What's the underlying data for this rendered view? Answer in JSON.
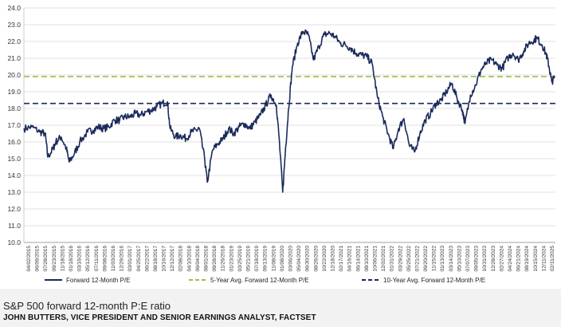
{
  "chart_data": {
    "type": "line",
    "title": "",
    "xlabel": "",
    "ylabel": "",
    "ylim": [
      10,
      24
    ],
    "y_ticks": [
      "10.0",
      "11.0",
      "12.0",
      "13.0",
      "14.0",
      "15.0",
      "16.0",
      "17.0",
      "18.0",
      "19.0",
      "20.0",
      "21.0",
      "22.0",
      "23.0",
      "24.0"
    ],
    "x_tick_labels": [
      "04/02/2015",
      "06/09/2015",
      "07/28/2015",
      "09/23/2015",
      "11/18/2015",
      "01/18/2016",
      "03/16/2016",
      "05/12/2016",
      "07/11/2016",
      "09/08/2016",
      "11/03/2016",
      "12/29/2016",
      "03/01/2017",
      "04/25/2017",
      "06/22/2017",
      "08/18/2017",
      "10/16/2017",
      "12/12/2017",
      "02/08/2018",
      "04/10/2018",
      "06/04/2018",
      "08/01/2018",
      "09/28/2018",
      "11/26/2018",
      "01/23/2019",
      "03/25/2019",
      "05/21/2019",
      "07/18/2019",
      "09/13/2019",
      "11/08/2019",
      "01/08/2020",
      "03/06/2020",
      "05/04/2020",
      "06/30/2020",
      "08/26/2020",
      "10/22/2020",
      "12/18/2020",
      "02/17/2021",
      "04/16/2021",
      "06/14/2021",
      "08/10/2021",
      "10/06/2021",
      "12/02/2021",
      "01/31/2022",
      "03/29/2022",
      "05/25/2022",
      "07/21/2022",
      "09/20/2022",
      "11/15/2022",
      "01/13/2023",
      "03/14/2023",
      "05/10/2023",
      "07/07/2023",
      "09/05/2023",
      "10/31/2023",
      "12/28/2023",
      "02/27/2024",
      "04/24/2024",
      "06/21/2024",
      "08/19/2024",
      "10/15/2024",
      "12/11/2024",
      "02/11/2025"
    ],
    "grid": "horizontal",
    "legend_position": "bottom",
    "series": [
      {
        "name": "Forward 12-Month P/E",
        "color": "#1b2a5c",
        "style": "solid",
        "points": [
          [
            0,
            16.8
          ],
          [
            1.5,
            16.9
          ],
          [
            3,
            16.6
          ],
          [
            4,
            16.5
          ],
          [
            4.5,
            15.1
          ],
          [
            5.5,
            15.6
          ],
          [
            6,
            16.0
          ],
          [
            7,
            16.3
          ],
          [
            8,
            15.6
          ],
          [
            8.5,
            14.8
          ],
          [
            9.5,
            15.3
          ],
          [
            10.5,
            16.0
          ],
          [
            12,
            16.6
          ],
          [
            13,
            16.7
          ],
          [
            14,
            16.9
          ],
          [
            15,
            16.8
          ],
          [
            16,
            16.9
          ],
          [
            17,
            17.3
          ],
          [
            18,
            17.3
          ],
          [
            19,
            17.5
          ],
          [
            20,
            17.5
          ],
          [
            21,
            17.7
          ],
          [
            22,
            17.6
          ],
          [
            23,
            17.8
          ],
          [
            24,
            17.9
          ],
          [
            25,
            18.1
          ],
          [
            26,
            18.3
          ],
          [
            27,
            18.4
          ],
          [
            27.5,
            16.8
          ],
          [
            28.5,
            16.3
          ],
          [
            29.5,
            16.4
          ],
          [
            30.5,
            16.2
          ],
          [
            31.5,
            16.6
          ],
          [
            32.5,
            16.7
          ],
          [
            33,
            16.8
          ],
          [
            34,
            15.0
          ],
          [
            34.5,
            13.6
          ],
          [
            35.5,
            15.5
          ],
          [
            36.5,
            15.9
          ],
          [
            37.5,
            16.2
          ],
          [
            38.5,
            16.8
          ],
          [
            39.5,
            16.5
          ],
          [
            40.5,
            16.9
          ],
          [
            41.5,
            17.1
          ],
          [
            42.5,
            16.8
          ],
          [
            43.5,
            17.2
          ],
          [
            44.5,
            17.6
          ],
          [
            45.5,
            18.2
          ],
          [
            46.5,
            18.8
          ],
          [
            47.5,
            18.2
          ],
          [
            48,
            16.3
          ],
          [
            48.7,
            13.0
          ],
          [
            49.2,
            15.5
          ],
          [
            49.8,
            18.0
          ],
          [
            50.5,
            20.5
          ],
          [
            51.5,
            21.9
          ],
          [
            52.5,
            22.6
          ],
          [
            53.5,
            22.4
          ],
          [
            54.5,
            20.9
          ],
          [
            55.5,
            21.7
          ],
          [
            56.5,
            22.4
          ],
          [
            57.5,
            22.5
          ],
          [
            58.5,
            22.3
          ],
          [
            59.5,
            21.9
          ],
          [
            60.5,
            21.8
          ],
          [
            61.5,
            21.6
          ],
          [
            62.5,
            21.3
          ],
          [
            63.5,
            21.2
          ],
          [
            64.5,
            21.1
          ],
          [
            65.5,
            20.7
          ],
          [
            66.5,
            18.7
          ],
          [
            67.5,
            17.5
          ],
          [
            68.5,
            16.5
          ],
          [
            69.5,
            15.6
          ],
          [
            70.5,
            16.8
          ],
          [
            71.5,
            17.4
          ],
          [
            72.5,
            15.8
          ],
          [
            73.5,
            15.4
          ],
          [
            74.5,
            16.5
          ],
          [
            75.5,
            17.3
          ],
          [
            76.5,
            17.7
          ],
          [
            77.5,
            18.3
          ],
          [
            78.5,
            18.5
          ],
          [
            79.5,
            19.0
          ],
          [
            80.5,
            19.5
          ],
          [
            81.5,
            18.6
          ],
          [
            82.5,
            17.9
          ],
          [
            83,
            17.1
          ],
          [
            84,
            18.8
          ],
          [
            85,
            19.4
          ],
          [
            86,
            20.3
          ],
          [
            87,
            20.7
          ],
          [
            88,
            20.9
          ],
          [
            89,
            20.6
          ],
          [
            90,
            20.4
          ],
          [
            91,
            21.0
          ],
          [
            92,
            21.3
          ],
          [
            93,
            20.9
          ],
          [
            94,
            21.4
          ],
          [
            95,
            21.9
          ],
          [
            96,
            22.1
          ],
          [
            96.5,
            22.2
          ],
          [
            97.5,
            21.8
          ],
          [
            98.3,
            21.2
          ],
          [
            98.8,
            20.5
          ],
          [
            99.3,
            19.6
          ],
          [
            99.8,
            19.8
          ]
        ]
      },
      {
        "name": "5-Year Avg. Forward 12-Month P/E",
        "color": "#9dc044",
        "style": "dashed",
        "value": 19.9
      },
      {
        "name": "10-Year Avg. Forward 12-Month P/E",
        "color": "#1b2a5c",
        "style": "dashed",
        "value": 18.3
      }
    ]
  },
  "caption": {
    "title": "S&P 500 forward 12-month P:E ratio",
    "credit": "JOHN BUTTERS, VICE PRESIDENT AND SENIOR EARNINGS ANALYST, FACTSET"
  }
}
